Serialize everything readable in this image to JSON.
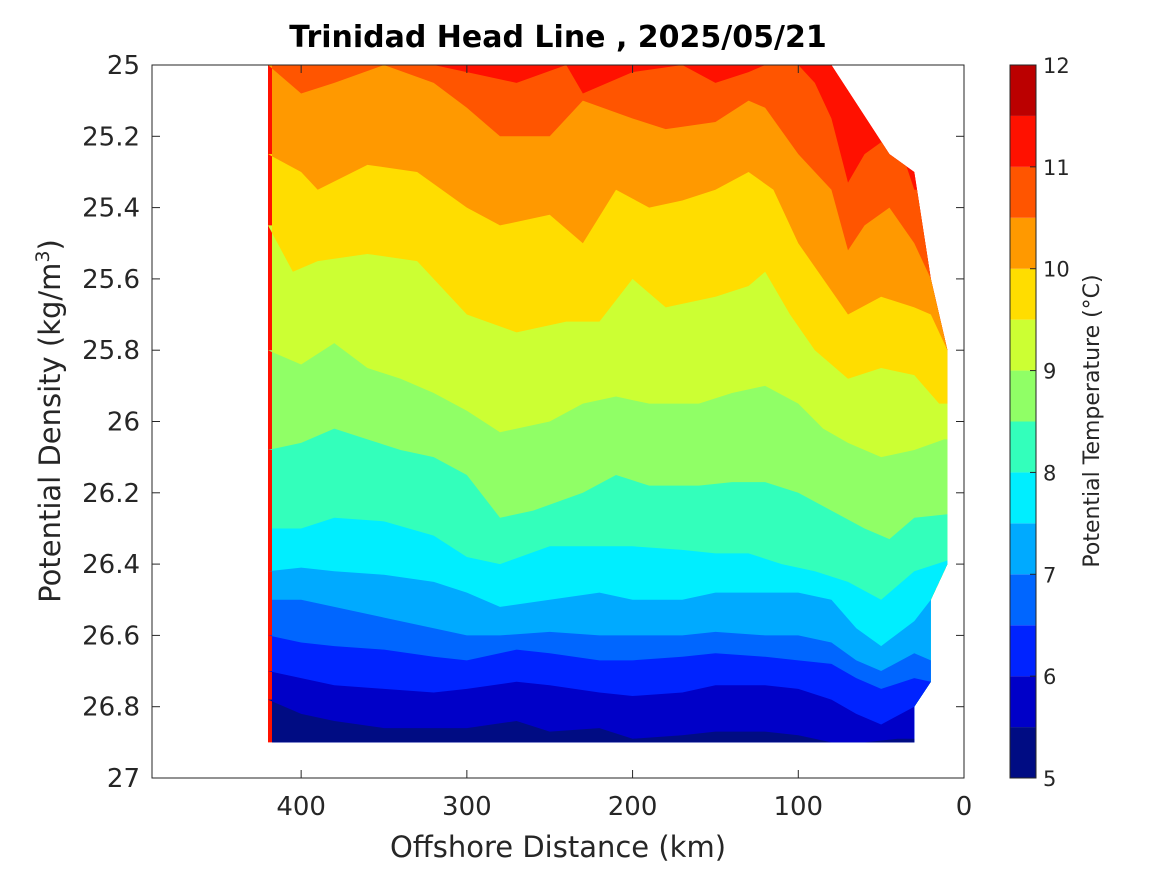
{
  "chart_data": {
    "type": "contour",
    "title": "Trinidad Head Line , 2025/05/21",
    "xlabel": "Offshore Distance (km)",
    "ylabel": "Potential Density (kg/m",
    "ylabel_superscript": "3",
    "ylabel_suffix": ")",
    "xlim": [
      490,
      0
    ],
    "ylim": [
      25,
      27
    ],
    "x_reversed": true,
    "y_reversed": true,
    "xticks": [
      400,
      300,
      200,
      100,
      0
    ],
    "xtick_labels": [
      "400",
      "300",
      "200",
      "100",
      "0"
    ],
    "yticks": [
      25,
      25.2,
      25.4,
      25.6,
      25.8,
      26,
      26.2,
      26.4,
      26.6,
      26.8,
      27
    ],
    "ytick_labels": [
      "25",
      "25.2",
      "25.4",
      "25.6",
      "25.8",
      "26",
      "26.2",
      "26.4",
      "26.6",
      "26.8",
      "27"
    ],
    "data_extent": {
      "x_min": 10,
      "x_max": 420,
      "y_bottom": 26.9,
      "coast_edge": [
        {
          "density": 25.0,
          "distance": 80
        },
        {
          "density": 25.25,
          "distance": 45
        },
        {
          "density": 25.3,
          "distance": 30
        },
        {
          "density": 25.6,
          "distance": 20
        },
        {
          "density": 25.8,
          "distance": 10
        },
        {
          "density": 26.4,
          "distance": 10
        },
        {
          "density": 26.5,
          "distance": 20
        },
        {
          "density": 26.73,
          "distance": 20
        },
        {
          "density": 26.8,
          "distance": 30
        },
        {
          "density": 26.9,
          "distance": 30
        }
      ]
    },
    "contour_levels": [
      5,
      5.5,
      6,
      6.5,
      7,
      7.5,
      8,
      8.5,
      9,
      9.5,
      10,
      10.5,
      11,
      11.5,
      12
    ],
    "isotherms": [
      {
        "level": 11.5,
        "points": [
          [
            420,
            25.0
          ],
          [
            420,
            25.0
          ]
        ]
      },
      {
        "level": 11,
        "points": [
          [
            420,
            24.99
          ],
          [
            330,
            24.99
          ],
          [
            300,
            25.02
          ],
          [
            270,
            25.05
          ],
          [
            240,
            25.0
          ],
          [
            230,
            25.08
          ],
          [
            200,
            25.02
          ],
          [
            170,
            25.0
          ],
          [
            150,
            25.05
          ],
          [
            130,
            25.02
          ],
          [
            120,
            25.0
          ],
          [
            100,
            25.0
          ],
          [
            90,
            25.05
          ],
          [
            80,
            25.15
          ],
          [
            70,
            25.33
          ],
          [
            60,
            25.25
          ],
          [
            45,
            25.2
          ],
          [
            35,
            25.28
          ],
          [
            30,
            25.35
          ]
        ]
      },
      {
        "level": 10.5,
        "points": [
          [
            420,
            25.0
          ],
          [
            400,
            25.08
          ],
          [
            380,
            25.05
          ],
          [
            350,
            25.0
          ],
          [
            320,
            25.05
          ],
          [
            300,
            25.12
          ],
          [
            280,
            25.2
          ],
          [
            250,
            25.2
          ],
          [
            230,
            25.1
          ],
          [
            200,
            25.15
          ],
          [
            180,
            25.18
          ],
          [
            150,
            25.16
          ],
          [
            130,
            25.1
          ],
          [
            120,
            25.12
          ],
          [
            100,
            25.25
          ],
          [
            80,
            25.35
          ],
          [
            70,
            25.52
          ],
          [
            60,
            25.45
          ],
          [
            45,
            25.4
          ],
          [
            30,
            25.5
          ],
          [
            20,
            25.6
          ]
        ]
      },
      {
        "level": 10,
        "points": [
          [
            420,
            25.25
          ],
          [
            400,
            25.3
          ],
          [
            390,
            25.35
          ],
          [
            360,
            25.28
          ],
          [
            330,
            25.3
          ],
          [
            300,
            25.4
          ],
          [
            280,
            25.45
          ],
          [
            250,
            25.42
          ],
          [
            230,
            25.5
          ],
          [
            210,
            25.35
          ],
          [
            190,
            25.4
          ],
          [
            170,
            25.38
          ],
          [
            150,
            25.35
          ],
          [
            130,
            25.3
          ],
          [
            115,
            25.35
          ],
          [
            100,
            25.5
          ],
          [
            85,
            25.6
          ],
          [
            70,
            25.7
          ],
          [
            50,
            25.65
          ],
          [
            30,
            25.68
          ],
          [
            20,
            25.7
          ],
          [
            10,
            25.8
          ]
        ]
      },
      {
        "level": 9.5,
        "points": [
          [
            420,
            25.45
          ],
          [
            405,
            25.58
          ],
          [
            390,
            25.55
          ],
          [
            360,
            25.53
          ],
          [
            330,
            25.55
          ],
          [
            300,
            25.7
          ],
          [
            270,
            25.75
          ],
          [
            240,
            25.72
          ],
          [
            220,
            25.72
          ],
          [
            200,
            25.6
          ],
          [
            180,
            25.68
          ],
          [
            150,
            25.65
          ],
          [
            130,
            25.62
          ],
          [
            120,
            25.58
          ],
          [
            105,
            25.7
          ],
          [
            90,
            25.8
          ],
          [
            70,
            25.88
          ],
          [
            50,
            25.85
          ],
          [
            30,
            25.87
          ],
          [
            15,
            25.95
          ]
        ]
      },
      {
        "level": 9,
        "points": [
          [
            420,
            25.8
          ],
          [
            400,
            25.84
          ],
          [
            380,
            25.78
          ],
          [
            360,
            25.85
          ],
          [
            340,
            25.88
          ],
          [
            320,
            25.92
          ],
          [
            300,
            25.97
          ],
          [
            280,
            26.03
          ],
          [
            250,
            26.0
          ],
          [
            230,
            25.95
          ],
          [
            210,
            25.93
          ],
          [
            190,
            25.95
          ],
          [
            160,
            25.95
          ],
          [
            140,
            25.92
          ],
          [
            120,
            25.9
          ],
          [
            100,
            25.95
          ],
          [
            85,
            26.02
          ],
          [
            70,
            26.06
          ],
          [
            50,
            26.1
          ],
          [
            30,
            26.08
          ],
          [
            12,
            26.05
          ]
        ]
      },
      {
        "level": 8.5,
        "points": [
          [
            420,
            26.08
          ],
          [
            400,
            26.06
          ],
          [
            380,
            26.02
          ],
          [
            360,
            26.05
          ],
          [
            340,
            26.08
          ],
          [
            320,
            26.1
          ],
          [
            300,
            26.15
          ],
          [
            280,
            26.27
          ],
          [
            260,
            26.25
          ],
          [
            230,
            26.2
          ],
          [
            210,
            26.15
          ],
          [
            190,
            26.18
          ],
          [
            160,
            26.18
          ],
          [
            140,
            26.17
          ],
          [
            120,
            26.17
          ],
          [
            100,
            26.2
          ],
          [
            80,
            26.25
          ],
          [
            60,
            26.3
          ],
          [
            45,
            26.33
          ],
          [
            30,
            26.27
          ],
          [
            10,
            26.26
          ]
        ]
      },
      {
        "level": 8,
        "points": [
          [
            420,
            26.3
          ],
          [
            400,
            26.3
          ],
          [
            380,
            26.27
          ],
          [
            350,
            26.28
          ],
          [
            320,
            26.32
          ],
          [
            300,
            26.38
          ],
          [
            280,
            26.4
          ],
          [
            250,
            26.35
          ],
          [
            230,
            26.35
          ],
          [
            200,
            26.35
          ],
          [
            170,
            26.36
          ],
          [
            150,
            26.37
          ],
          [
            130,
            26.37
          ],
          [
            110,
            26.4
          ],
          [
            90,
            26.42
          ],
          [
            70,
            26.45
          ],
          [
            50,
            26.5
          ],
          [
            30,
            26.42
          ],
          [
            10,
            26.39
          ]
        ]
      },
      {
        "level": 7.5,
        "points": [
          [
            420,
            26.42
          ],
          [
            400,
            26.41
          ],
          [
            380,
            26.42
          ],
          [
            350,
            26.43
          ],
          [
            320,
            26.45
          ],
          [
            300,
            26.48
          ],
          [
            280,
            26.52
          ],
          [
            250,
            26.5
          ],
          [
            220,
            26.48
          ],
          [
            200,
            26.5
          ],
          [
            170,
            26.5
          ],
          [
            150,
            26.48
          ],
          [
            120,
            26.48
          ],
          [
            100,
            26.48
          ],
          [
            80,
            26.5
          ],
          [
            65,
            26.58
          ],
          [
            50,
            26.63
          ],
          [
            30,
            26.56
          ],
          [
            20,
            26.5
          ]
        ]
      },
      {
        "level": 7,
        "points": [
          [
            420,
            26.5
          ],
          [
            400,
            26.5
          ],
          [
            380,
            26.52
          ],
          [
            350,
            26.55
          ],
          [
            320,
            26.58
          ],
          [
            300,
            26.6
          ],
          [
            280,
            26.6
          ],
          [
            250,
            26.59
          ],
          [
            220,
            26.6
          ],
          [
            200,
            26.6
          ],
          [
            170,
            26.6
          ],
          [
            150,
            26.59
          ],
          [
            120,
            26.6
          ],
          [
            100,
            26.6
          ],
          [
            80,
            26.62
          ],
          [
            65,
            26.67
          ],
          [
            50,
            26.7
          ],
          [
            30,
            26.65
          ],
          [
            20,
            26.67
          ]
        ]
      },
      {
        "level": 6.5,
        "points": [
          [
            420,
            26.6
          ],
          [
            400,
            26.62
          ],
          [
            380,
            26.63
          ],
          [
            350,
            26.64
          ],
          [
            320,
            26.66
          ],
          [
            300,
            26.67
          ],
          [
            270,
            26.64
          ],
          [
            250,
            26.65
          ],
          [
            220,
            26.67
          ],
          [
            200,
            26.67
          ],
          [
            170,
            26.66
          ],
          [
            150,
            26.65
          ],
          [
            120,
            26.66
          ],
          [
            100,
            26.67
          ],
          [
            80,
            26.68
          ],
          [
            65,
            26.72
          ],
          [
            50,
            26.75
          ],
          [
            30,
            26.72
          ],
          [
            20,
            26.73
          ]
        ]
      },
      {
        "level": 6,
        "points": [
          [
            420,
            26.7
          ],
          [
            400,
            26.72
          ],
          [
            380,
            26.74
          ],
          [
            350,
            26.75
          ],
          [
            320,
            26.76
          ],
          [
            300,
            26.75
          ],
          [
            270,
            26.73
          ],
          [
            250,
            26.74
          ],
          [
            220,
            26.76
          ],
          [
            200,
            26.77
          ],
          [
            170,
            26.76
          ],
          [
            150,
            26.74
          ],
          [
            120,
            26.74
          ],
          [
            100,
            26.75
          ],
          [
            80,
            26.78
          ],
          [
            65,
            26.82
          ],
          [
            50,
            26.85
          ],
          [
            30,
            26.8
          ]
        ]
      },
      {
        "level": 5.5,
        "points": [
          [
            420,
            26.78
          ],
          [
            400,
            26.82
          ],
          [
            380,
            26.84
          ],
          [
            350,
            26.86
          ],
          [
            320,
            26.86
          ],
          [
            300,
            26.86
          ],
          [
            270,
            26.84
          ],
          [
            250,
            26.87
          ],
          [
            220,
            26.86
          ],
          [
            200,
            26.89
          ],
          [
            170,
            26.88
          ],
          [
            150,
            26.87
          ],
          [
            120,
            26.87
          ],
          [
            100,
            26.88
          ],
          [
            80,
            26.9
          ],
          [
            60,
            26.9
          ],
          [
            40,
            26.89
          ],
          [
            30,
            26.89
          ]
        ]
      }
    ],
    "colorbar": {
      "label": "Potential Temperature (°C)",
      "min": 5,
      "max": 12,
      "ticks": [
        5,
        6,
        7,
        8,
        9,
        10,
        11,
        12
      ],
      "tick_labels": [
        "5",
        "6",
        "7",
        "8",
        "9",
        "10",
        "11",
        "12"
      ],
      "colors": [
        "#000C83",
        "#0000C8",
        "#0023FF",
        "#0066FF",
        "#00AAFF",
        "#00EEFF",
        "#33FFBB",
        "#90FF66",
        "#CCFF33",
        "#FFDD00",
        "#FF9900",
        "#FF5500",
        "#FF1100",
        "#BB0000"
      ]
    },
    "grid": false,
    "box": true
  }
}
